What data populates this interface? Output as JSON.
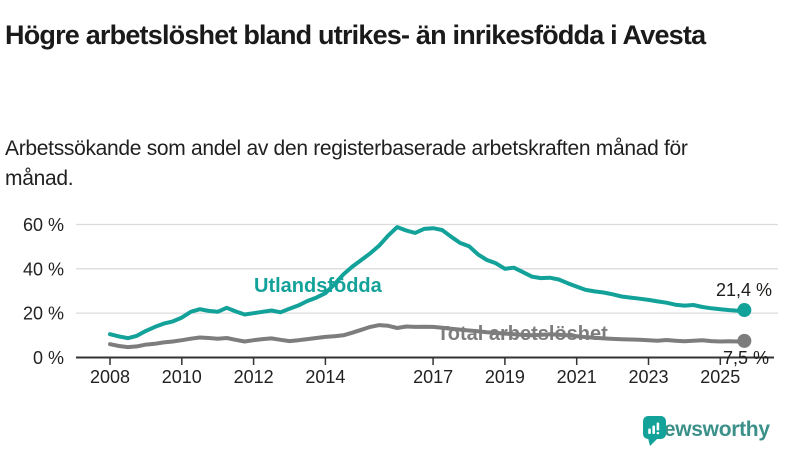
{
  "title": "Högre arbetslöshet bland utrikes- än inrikesfödda i Avesta",
  "subtitle": "Arbetssökande som andel av den registerbaserade arbetskraften månad för månad.",
  "chart_data": {
    "type": "line",
    "title": "Högre arbetslöshet bland utrikes- än inrikesfödda i Avesta",
    "xlabel": "",
    "ylabel": "",
    "unit": "%",
    "grid": true,
    "legend_position": "inline-labels",
    "ylim": [
      0,
      63
    ],
    "xlim": [
      2007.1,
      2026.5
    ],
    "ytick_values": [
      0,
      20,
      40,
      60
    ],
    "ytick_labels": [
      "0 %",
      "20 %",
      "40 %",
      "60 %"
    ],
    "xtick_values": [
      2008,
      2010,
      2012,
      2014,
      2017,
      2019,
      2021,
      2023,
      2025
    ],
    "x": [
      2008,
      2008.25,
      2008.5,
      2008.75,
      2009,
      2009.25,
      2009.5,
      2009.75,
      2010,
      2010.25,
      2010.5,
      2010.75,
      2011,
      2011.25,
      2011.5,
      2011.75,
      2012,
      2012.25,
      2012.5,
      2012.75,
      2013,
      2013.25,
      2013.5,
      2013.75,
      2014,
      2014.25,
      2014.5,
      2014.75,
      2015,
      2015.25,
      2015.5,
      2015.75,
      2016,
      2016.25,
      2016.5,
      2016.75,
      2017,
      2017.25,
      2017.5,
      2017.75,
      2018,
      2018.25,
      2018.5,
      2018.75,
      2019,
      2019.25,
      2019.5,
      2019.75,
      2020,
      2020.25,
      2020.5,
      2020.75,
      2021,
      2021.25,
      2021.5,
      2021.75,
      2022,
      2022.25,
      2022.5,
      2022.75,
      2023,
      2023.25,
      2023.5,
      2023.75,
      2024,
      2024.25,
      2024.5,
      2024.75,
      2025,
      2025.25,
      2025.5,
      2025.67
    ],
    "series": [
      {
        "name": "Utlandsfödda",
        "color": "#12a299",
        "end_value_label": "21,4 %",
        "values": [
          10.5,
          9.5,
          8.7,
          9.8,
          12,
          13.8,
          15.3,
          16.3,
          18,
          20.6,
          21.8,
          21,
          20.6,
          22.4,
          20.8,
          19.4,
          20,
          20.6,
          21.2,
          20.4,
          22,
          23.5,
          25.5,
          27,
          29,
          33,
          37.5,
          41,
          44,
          47,
          50.5,
          55,
          58.8,
          57.3,
          56.2,
          58,
          58.3,
          57.5,
          54.5,
          51.7,
          50.2,
          46.5,
          44,
          42.5,
          40,
          40.5,
          38.5,
          36.5,
          35.8,
          36,
          35.2,
          33.5,
          32,
          30.5,
          29.8,
          29.3,
          28.5,
          27.5,
          27,
          26.5,
          26,
          25.3,
          24.7,
          23.8,
          23.4,
          23.7,
          22.8,
          22.2,
          21.8,
          21.4,
          21.1,
          21.4
        ]
      },
      {
        "name": "Total arbetslöshet",
        "color": "#7d7d7d",
        "end_value_label": "7,5 %",
        "values": [
          6,
          5.2,
          4.7,
          5,
          5.8,
          6.2,
          6.8,
          7.2,
          7.8,
          8.5,
          9,
          8.8,
          8.5,
          8.8,
          8,
          7.2,
          7.8,
          8.3,
          8.6,
          8,
          7.4,
          7.8,
          8.3,
          8.8,
          9.3,
          9.6,
          10,
          11.2,
          12.5,
          13.8,
          14.6,
          14.3,
          13.3,
          14,
          13.8,
          13.9,
          13.8,
          13.4,
          13,
          12.6,
          12.2,
          11.8,
          11.4,
          11.1,
          10.8,
          10.5,
          10.2,
          10,
          10.2,
          10.5,
          10.3,
          10,
          9.6,
          9.2,
          8.9,
          8.6,
          8.4,
          8.2,
          8.1,
          8,
          7.8,
          7.6,
          7.9,
          7.6,
          7.3,
          7.6,
          7.8,
          7.4,
          7.2,
          7.3,
          7.2,
          7.5
        ]
      }
    ]
  },
  "colors": {
    "accent_teal": "#12a299",
    "series_gray": "#7d7d7d",
    "grid": "#dcdcdc",
    "axis": "#333333",
    "text": "#1d1d1b",
    "brand_teal": "#3b9089"
  },
  "footer": {
    "brand": "Newsworthy"
  }
}
